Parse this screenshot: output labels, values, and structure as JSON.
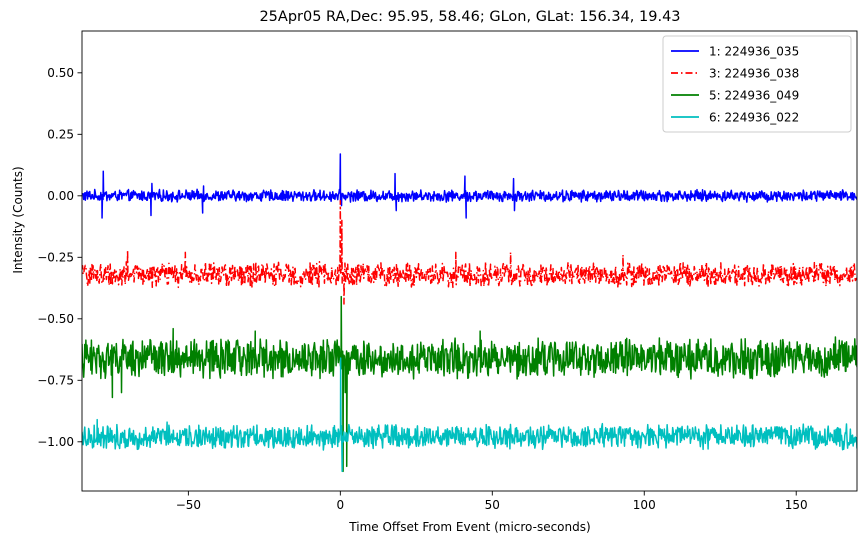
{
  "chart_data": {
    "type": "line",
    "title": "25Apr05 RA,Dec:   95.95,  58.46; GLon, GLat:  156.34,  19.43",
    "xlabel": "Time Offset From Event (micro-seconds)",
    "ylabel": "Intensity (Counts)",
    "xlim": [
      -85,
      170
    ],
    "ylim": [
      -1.2,
      0.67
    ],
    "xticks": [
      -50,
      0,
      50,
      100,
      150
    ],
    "xtick_labels": [
      "−50",
      "0",
      "50",
      "100",
      "150"
    ],
    "yticks": [
      0.5,
      0.25,
      0.0,
      -0.25,
      -0.5,
      -0.75,
      -1.0
    ],
    "ytick_labels": [
      "0.50",
      "0.25",
      "0.00",
      "−0.25",
      "−0.50",
      "−0.75",
      "−1.00"
    ],
    "grid": false,
    "legend_position": "top-right",
    "series": [
      {
        "name": "1: 224936_035",
        "color": "#0000ff",
        "linestyle": "solid",
        "baseline": 0.0,
        "noise": 0.012,
        "spikes": [
          {
            "x": 0,
            "y": 0.17
          },
          {
            "x": 0.4,
            "y": -0.04
          },
          {
            "x": -78,
            "y": 0.1
          },
          {
            "x": -78.4,
            "y": -0.09
          },
          {
            "x": -62,
            "y": 0.05
          },
          {
            "x": -62.3,
            "y": -0.08
          },
          {
            "x": -45,
            "y": 0.04
          },
          {
            "x": -45.3,
            "y": -0.07
          },
          {
            "x": 18,
            "y": 0.09
          },
          {
            "x": 18.4,
            "y": -0.06
          },
          {
            "x": 41,
            "y": 0.08
          },
          {
            "x": 41.4,
            "y": -0.09
          },
          {
            "x": 57,
            "y": 0.07
          },
          {
            "x": 57.3,
            "y": -0.06
          }
        ]
      },
      {
        "name": "3: 224936_038",
        "color": "#ff0000",
        "linestyle": "dashdot",
        "baseline": -0.32,
        "noise": 0.025,
        "spikes": [
          {
            "x": 0,
            "y": -0.02
          },
          {
            "x": 0.5,
            "y": -0.1
          },
          {
            "x": 1.2,
            "y": -0.44
          },
          {
            "x": -70,
            "y": -0.22
          },
          {
            "x": -51,
            "y": -0.23
          },
          {
            "x": 38,
            "y": -0.23
          },
          {
            "x": 56,
            "y": -0.23
          },
          {
            "x": 93,
            "y": -0.24
          }
        ]
      },
      {
        "name": "5: 224936_049",
        "color": "#008000",
        "linestyle": "solid",
        "baseline": -0.66,
        "noise": 0.04,
        "spikes": [
          {
            "x": 0.3,
            "y": -0.41
          },
          {
            "x": 0.9,
            "y": -1.12
          },
          {
            "x": 1.6,
            "y": -0.8
          },
          {
            "x": 2.1,
            "y": -1.1
          },
          {
            "x": -75,
            "y": -0.82
          },
          {
            "x": -72,
            "y": -0.8
          },
          {
            "x": -55,
            "y": -0.54
          },
          {
            "x": -28,
            "y": -0.55
          },
          {
            "x": 46,
            "y": -0.55
          }
        ]
      },
      {
        "name": "6: 224936_022",
        "color": "#00bfbf",
        "linestyle": "solid",
        "baseline": -0.98,
        "noise": 0.025,
        "spikes": [
          {
            "x": 0.1,
            "y": -0.66
          },
          {
            "x": 0.6,
            "y": -1.12
          },
          {
            "x": -80,
            "y": -0.91
          },
          {
            "x": -57,
            "y": -0.92
          },
          {
            "x": 48,
            "y": -0.93
          }
        ]
      }
    ]
  }
}
